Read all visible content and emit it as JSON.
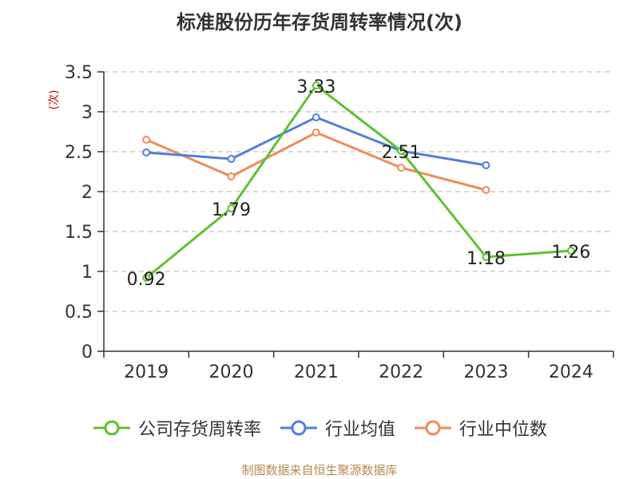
{
  "chart_data": {
    "type": "line",
    "title": "标准股份历年存货周转率情况(次)",
    "ylabel": "(次)",
    "categories": [
      "2019",
      "2020",
      "2021",
      "2022",
      "2023",
      "2024"
    ],
    "ylim": [
      0,
      3.5
    ],
    "yticks": [
      "0",
      "0.5",
      "1",
      "1.5",
      "2",
      "2.5",
      "3",
      "3.5"
    ],
    "grid": true,
    "legend_position": "bottom",
    "series": [
      {
        "name": "公司存货周转率",
        "color": "#5cc22f",
        "values": [
          0.92,
          1.79,
          3.33,
          2.51,
          1.18,
          1.26
        ],
        "labels": [
          "0.92",
          "1.79",
          "3.33",
          "2.51",
          "1.18",
          "1.26"
        ]
      },
      {
        "name": "行业均值",
        "color": "#4e7fdb",
        "values": [
          2.49,
          2.41,
          2.93,
          2.51,
          2.33,
          null
        ]
      },
      {
        "name": "行业中位数",
        "color": "#f08a5a",
        "values": [
          2.65,
          2.19,
          2.74,
          2.3,
          2.02,
          null
        ]
      }
    ]
  },
  "source": "制图数据来自恒生聚源数据库"
}
